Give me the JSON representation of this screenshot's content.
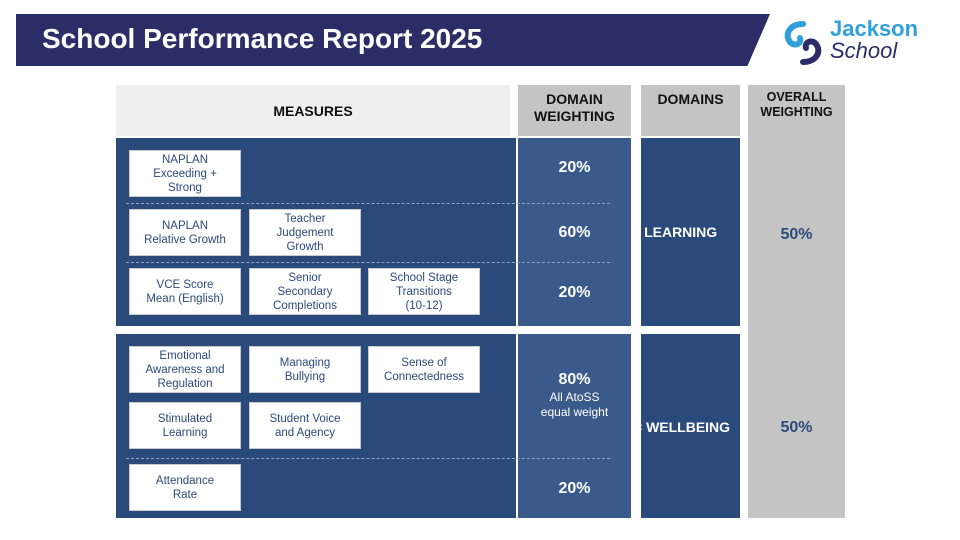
{
  "header": {
    "title": "School Performance Report 2025"
  },
  "logo": {
    "line1": "Jackson",
    "line2": "School",
    "icon": "swirl-logo-icon"
  },
  "table_headers": {
    "measures": "MEASURES",
    "domain_weighting": [
      "DOMAIN",
      "WEIGHTING"
    ],
    "domains": "DOMAINS",
    "overall_weighting": [
      "OVERALL",
      "WEIGHTING"
    ]
  },
  "learning": {
    "rows": [
      {
        "measures": [
          [
            "NAPLAN",
            "Exceeding +",
            "Strong"
          ]
        ],
        "weight": "20%"
      },
      {
        "measures": [
          [
            "NAPLAN",
            "Relative Growth"
          ],
          [
            "Teacher",
            "Judgement",
            "Growth"
          ]
        ],
        "weight": "60%"
      },
      {
        "measures": [
          [
            "VCE Score",
            "Mean (English)"
          ],
          [
            "Senior",
            "Secondary",
            "Completions"
          ],
          [
            "School Stage",
            "Transitions",
            "(10-12)"
          ]
        ],
        "weight": "20%"
      }
    ],
    "domain_label": "=   LEARNING",
    "overall": "50%"
  },
  "wellbeing": {
    "measures_group": [
      [
        "Emotional",
        "Awareness and",
        "Regulation"
      ],
      [
        "Managing",
        "Bullying"
      ],
      [
        "Sense of",
        "Connectedness"
      ],
      [
        "Stimulated",
        "Learning"
      ],
      [
        "Student Voice",
        "and Agency"
      ]
    ],
    "group_weight": "80%",
    "group_note": [
      "All AtoSS",
      "equal weight"
    ],
    "attendance": [
      "Attendance",
      "Rate"
    ],
    "attendance_weight": "20%",
    "domain_label": "=  WELLBEING",
    "overall": "50%"
  },
  "colors": {
    "navy": "#2a2d66",
    "blue": "#2b4a7c",
    "grey": "#c4c4c4",
    "logo_cyan": "#2fa0d9"
  }
}
